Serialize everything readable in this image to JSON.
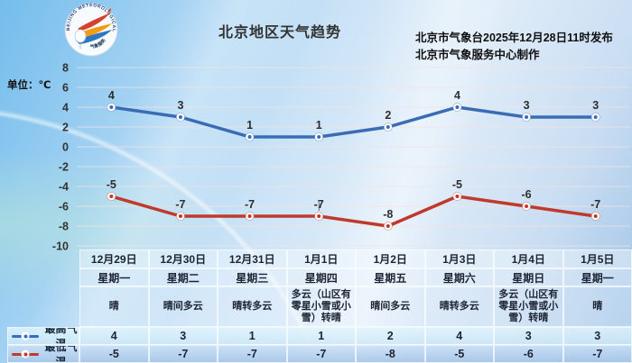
{
  "header": {
    "title": "北京地区天气趋势",
    "issued_line1": "北京市气象台2025年12月28日11时发布",
    "issued_line2": "北京市气象服务中心制作",
    "unit_label": "单位：℃",
    "logo": {
      "ring_text": "BEIJING METEOROLOGICAL SERVICE",
      "bottom_text": "气象服务"
    }
  },
  "chart_data": {
    "type": "line",
    "categories": [
      "12月29日",
      "12月30日",
      "12月31日",
      "1月1日",
      "1月2日",
      "1月3日",
      "1月4日",
      "1月5日"
    ],
    "weekdays": [
      "星期一",
      "星期二",
      "星期三",
      "星期四",
      "星期五",
      "星期六",
      "星期日",
      "星期一"
    ],
    "series": [
      {
        "name": "最高气温",
        "color": "#3a6cb5",
        "values": [
          4,
          3,
          1,
          1,
          2,
          4,
          3,
          3
        ]
      },
      {
        "name": "最低气温",
        "color": "#c0392b",
        "values": [
          -5,
          -7,
          -7,
          -7,
          -8,
          -5,
          -6,
          -7
        ],
        "leader_index": 3
      }
    ],
    "ylabel": "单位：℃",
    "ylim": [
      -10,
      8
    ],
    "ytick_step": 2,
    "grid": true,
    "legend_position": "bottom-left"
  },
  "table": {
    "weather": [
      "晴",
      "晴间多云",
      "晴转多云",
      "多云（山区有零星小雪或小雪）转晴",
      "晴间多云",
      "晴转多云",
      "多云（山区有零星小雪或小雪）转晴",
      "晴"
    ],
    "legend_max_label": "最高气温",
    "legend_min_label": "最低气温"
  },
  "colors": {
    "max_line": "#3a6cb5",
    "min_line": "#c0392b",
    "gridline": "#f3e3df",
    "tick_text": "#333333",
    "point_label": "#2d2d2d"
  }
}
